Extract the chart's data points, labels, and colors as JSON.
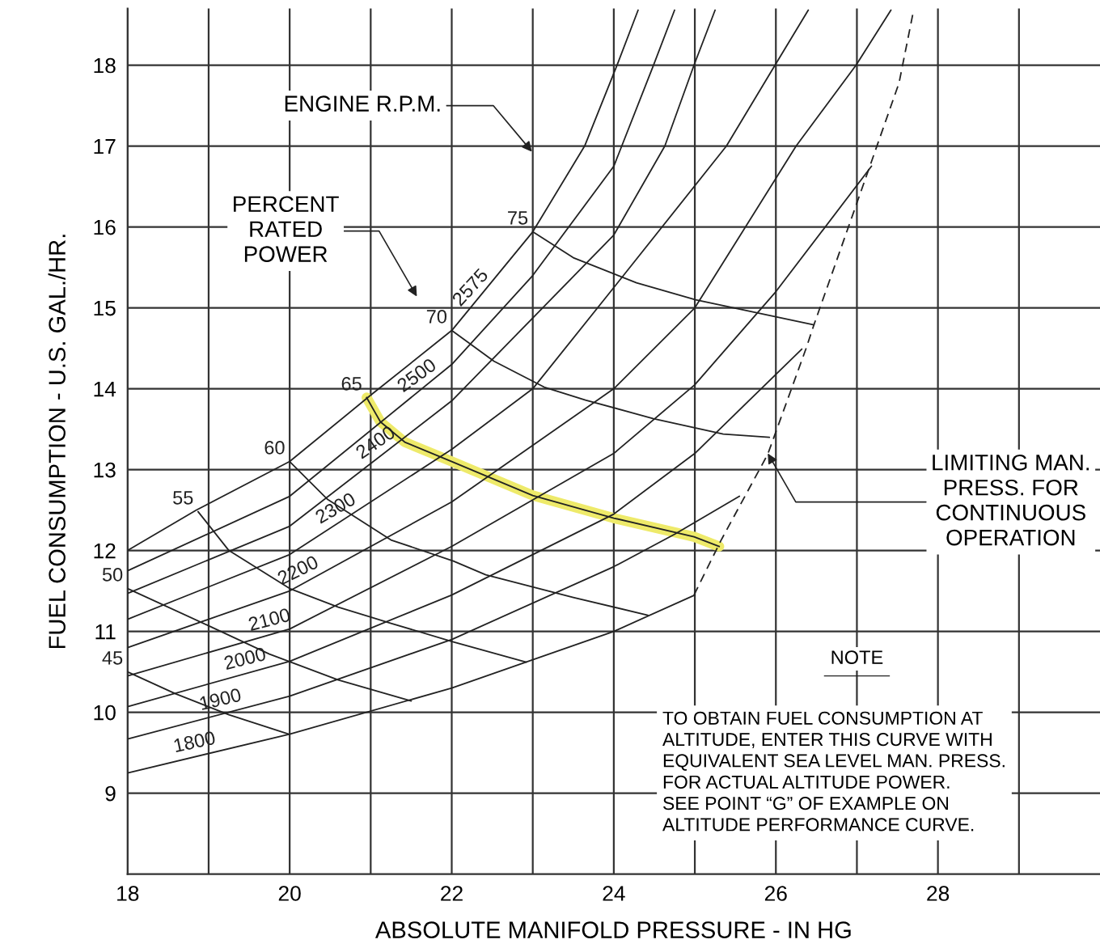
{
  "chart_data": {
    "type": "line",
    "xlabel": "ABSOLUTE MANIFOLD PRESSURE - IN HG",
    "ylabel": "FUEL CONSUMPTION - U.S. GAL./HR.",
    "xlim": [
      18,
      30
    ],
    "ylim": [
      8,
      18.7
    ],
    "xticks": [
      18,
      {
        "value": 19,
        "label": null
      },
      20,
      {
        "value": 21,
        "label": null
      },
      22,
      {
        "value": 23,
        "label": null
      },
      24,
      {
        "value": 25,
        "label": null
      },
      26,
      {
        "value": 27,
        "label": null
      },
      28,
      {
        "value": 29,
        "label": null
      }
    ],
    "yticks": [
      9,
      10,
      11,
      12,
      13,
      14,
      15,
      16,
      17,
      18
    ],
    "grid": true,
    "line_style": "solid",
    "series": [
      {
        "name": "1800",
        "color": "#222222",
        "x": [
          18,
          20,
          22,
          24,
          25
        ],
        "values": [
          9.25,
          9.73,
          10.3,
          11.0,
          11.45
        ]
      },
      {
        "name": "1900",
        "color": "#222222",
        "x": [
          18,
          20,
          22,
          24,
          24.75,
          25.55
        ],
        "values": [
          9.67,
          10.2,
          10.9,
          11.8,
          12.2,
          12.67
        ]
      },
      {
        "name": "2000",
        "color": "#222222",
        "x": [
          18,
          20,
          22,
          24,
          25,
          26.32
        ],
        "values": [
          10.07,
          10.63,
          11.45,
          12.45,
          13.2,
          14.49
        ]
      },
      {
        "name": "2100",
        "color": "#222222",
        "x": [
          18,
          20,
          22,
          24,
          25,
          26,
          27.18
        ],
        "values": [
          10.45,
          11.03,
          12.05,
          13.2,
          14.05,
          15.2,
          16.75
        ]
      },
      {
        "name": "2200",
        "color": "#222222",
        "x": [
          18,
          20,
          22,
          24,
          25,
          26.25,
          26.99,
          27.42
        ],
        "values": [
          10.8,
          11.5,
          12.6,
          14.0,
          15.0,
          17.0,
          18.0,
          18.68
        ]
      },
      {
        "name": "2300",
        "color": "#222222",
        "x": [
          18,
          20,
          22,
          23,
          24,
          25.39,
          25.99,
          26.4
        ],
        "values": [
          11.15,
          11.95,
          13.25,
          14.0,
          15.25,
          17.0,
          18.0,
          18.68
        ]
      },
      {
        "name": "2400",
        "color": "#222222",
        "x": [
          18,
          20,
          22,
          24,
          24.63,
          24.99,
          25.25
        ],
        "values": [
          11.47,
          12.3,
          13.85,
          15.9,
          17.0,
          18.0,
          18.68
        ]
      },
      {
        "name": "2500",
        "color": "#222222",
        "x": [
          18,
          20,
          22,
          23,
          24,
          24.49,
          24.75
        ],
        "values": [
          11.75,
          12.67,
          14.3,
          15.4,
          16.75,
          18.0,
          18.68
        ]
      },
      {
        "name": "2575",
        "color": "#222222",
        "x": [
          18,
          18.85,
          20,
          21,
          22,
          23,
          23.64,
          24.04,
          24.3
        ],
        "values": [
          12.0,
          12.5,
          13.1,
          13.92,
          14.72,
          15.94,
          17.0,
          18.0,
          18.68
        ]
      },
      {
        "name": "45",
        "color": "#222222",
        "x": [
          18,
          18.59,
          19.25,
          19.99
        ],
        "values": [
          10.5,
          10.23,
          9.97,
          9.73
        ]
      },
      {
        "name": "50",
        "color": "#222222",
        "x": [
          18,
          19,
          19.75,
          20.6,
          21.5
        ],
        "values": [
          11.53,
          11.07,
          10.72,
          10.4,
          10.14
        ]
      },
      {
        "name": "55",
        "color": "#222222",
        "x": [
          18.87,
          19.25,
          20,
          20.6,
          21.25,
          22.02,
          22.92
        ],
        "values": [
          12.48,
          12.0,
          11.53,
          11.3,
          11.1,
          10.87,
          10.62
        ]
      },
      {
        "name": "60",
        "color": "#222222",
        "x": [
          20,
          20.47,
          21.25,
          22.02,
          22.42,
          23.5,
          24.42
        ],
        "values": [
          13.1,
          12.63,
          12.13,
          11.87,
          11.7,
          11.42,
          11.2
        ]
      },
      {
        "name": "65",
        "color": "#eeea6a",
        "x": [
          20.95,
          21.12,
          21.42,
          22,
          23,
          24,
          24.99,
          25.3
        ],
        "values": [
          13.89,
          13.59,
          13.34,
          13.1,
          12.68,
          12.4,
          12.17,
          12.05
        ]
      },
      {
        "name": "70",
        "color": "#222222",
        "x": [
          22,
          22.52,
          23.14,
          23.65,
          24.49,
          25.35,
          25.92
        ],
        "values": [
          14.72,
          14.34,
          14.02,
          13.86,
          13.63,
          13.44,
          13.4
        ]
      },
      {
        "name": "75",
        "color": "#222222",
        "x": [
          23,
          23.5,
          24.28,
          25.01,
          26.47
        ],
        "values": [
          15.94,
          15.62,
          15.31,
          15.1,
          14.79
        ]
      },
      {
        "color": "#222222",
        "line_style": "dashed",
        "x": [
          24.99,
          25.32,
          25.9,
          26.37,
          26.47,
          27.17,
          27.52,
          27.7
        ],
        "values": [
          11.45,
          12.12,
          13.19,
          14.49,
          14.79,
          16.78,
          17.78,
          18.68
        ]
      }
    ],
    "annotations": [
      "ENGINE R.P.M.",
      "PERCENT\nRATED\nPOWER",
      {
        "text": "LIMITING MAN.\nPRESS. FOR\nCONTINUOUS\nOPERATION",
        "x": 25.9,
        "y": 13.2
      },
      "NOTE",
      "TO OBTAIN FUEL CONSUMPTION AT\nALTITUDE, ENTER THIS CURVE WITH\nEQUIVALENT SEA LEVEL MAN. PRESS.\nFOR ACTUAL ALTITUDE POWER.\nSEE POINT “G” OF EXAMPLE ON\nALTITUDE PERFORMANCE CURVE."
    ]
  }
}
